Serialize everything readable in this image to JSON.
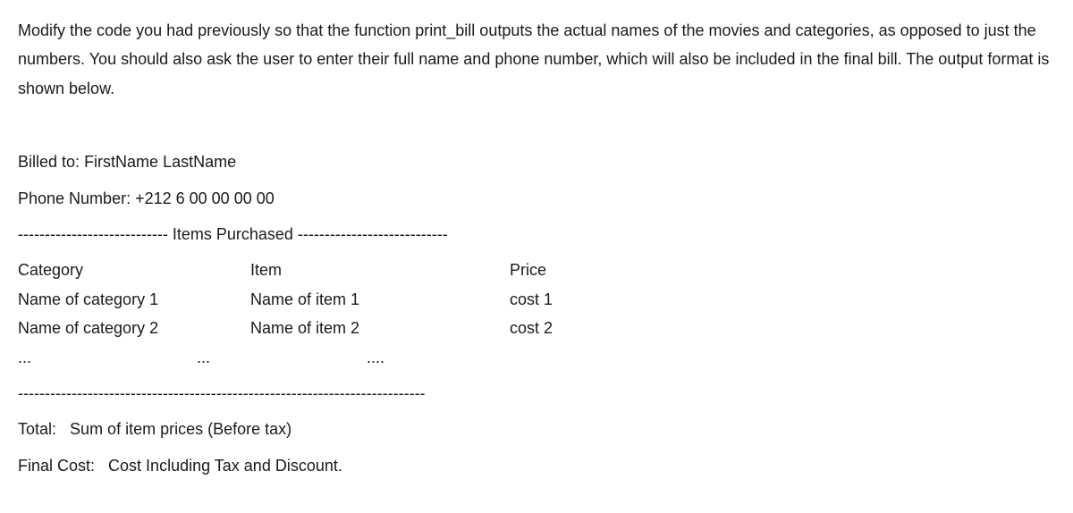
{
  "intro": "Modify the code you had previously so that the function print_bill outputs the actual names of the movies and categories, as opposed to just the numbers. You should also ask the user to enter their full name and phone number, which will also be included in the final bill. The output format is shown below.",
  "billed_to_label": "Billed to:",
  "billed_to_value": "FirstName LastName",
  "phone_label": "Phone Number:",
  "phone_value": "+212 6 00 00 00 00",
  "items_header_line": "---------------------------- Items Purchased ----------------------------",
  "columns": {
    "category": "Category",
    "item": "Item",
    "price": "Price"
  },
  "rows": [
    {
      "category": "Name of category 1",
      "item": "Name of item 1",
      "price": "cost 1"
    },
    {
      "category": "Name of category 2",
      "item": "Name of item 2",
      "price": "cost 2"
    }
  ],
  "ellipsis": {
    "a": "...",
    "b": "...",
    "c": "...."
  },
  "separator_line": "----------------------------------------------------------------------------",
  "total_label": "Total:",
  "total_value": "Sum of item prices (Before tax)",
  "final_label": "Final Cost:",
  "final_value": "Cost Including Tax and Discount."
}
